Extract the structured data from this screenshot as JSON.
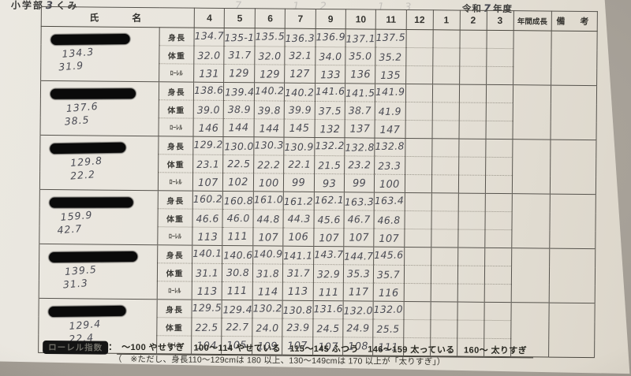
{
  "header": {
    "school_label": "小学部",
    "class_number": "3",
    "class_suffix": "くみ",
    "era_label": "令和",
    "year_number": "7",
    "year_suffix": "年度",
    "faint_marks": "7　12　13"
  },
  "table": {
    "name_header": "氏　　名",
    "annual_growth_header": "年間成長",
    "remarks_header": "備　考",
    "months": [
      "4",
      "5",
      "6",
      "7",
      "9",
      "10",
      "11",
      "12",
      "1",
      "2",
      "3"
    ],
    "row_labels": {
      "height": "身長",
      "weight": "体重",
      "rohrer": "ﾛｰﾚﾙ"
    },
    "students": [
      {
        "prev_height": "134.3",
        "prev_weight": "31.9",
        "height": [
          "134.7",
          "135-1",
          "135.5",
          "136.3",
          "136.9",
          "137.1",
          "137.5"
        ],
        "weight": [
          "32.0",
          "31.7",
          "32.0",
          "32.1",
          "34.0",
          "35.0",
          "35.2"
        ],
        "rohrer": [
          "131",
          "129",
          "129",
          "127",
          "133",
          "136",
          "135"
        ]
      },
      {
        "prev_height": "137.6",
        "prev_weight": "38.5",
        "height": [
          "138.6",
          "139.4",
          "140.2",
          "140.2",
          "141.6",
          "141.5",
          "141.9"
        ],
        "weight": [
          "39.0",
          "38.9",
          "39.8",
          "39.9",
          "37.5",
          "38.7",
          "41.9"
        ],
        "rohrer": [
          "146",
          "144",
          "144",
          "145",
          "132",
          "137",
          "147"
        ]
      },
      {
        "prev_height": "129.8",
        "prev_weight": "22.2",
        "height": [
          "129.2",
          "130.0",
          "130.3",
          "130.9",
          "132.2",
          "132.8",
          "132.8"
        ],
        "weight": [
          "23.1",
          "22.5",
          "22.2",
          "22.1",
          "21.5",
          "23.2",
          "23.3"
        ],
        "rohrer": [
          "107",
          "102",
          "100",
          "99",
          "93",
          "99",
          "100"
        ]
      },
      {
        "prev_height": "159.9",
        "prev_weight": "42.7",
        "height": [
          "160.2",
          "160.8",
          "161.0",
          "161.2",
          "162.1",
          "163.3",
          "163.4"
        ],
        "weight": [
          "46.6",
          "46.0",
          "44.8",
          "44.3",
          "45.6",
          "46.7",
          "46.8"
        ],
        "rohrer": [
          "113",
          "111",
          "107",
          "106",
          "107",
          "107",
          "107"
        ]
      },
      {
        "prev_height": "139.5",
        "prev_weight": "31.3",
        "height": [
          "140.1",
          "140.6",
          "140.9",
          "141.1",
          "143.7",
          "144.7",
          "145.6"
        ],
        "weight": [
          "31.1",
          "30.8",
          "31.8",
          "31.7",
          "32.9",
          "35.3",
          "35.7"
        ],
        "rohrer": [
          "113",
          "111",
          "114",
          "113",
          "111",
          "117",
          "116"
        ]
      },
      {
        "prev_height": "129.4",
        "prev_weight": "22.4",
        "height": [
          "129.5",
          "129.4",
          "130.2",
          "130.8",
          "131.6",
          "132.0",
          "132.0"
        ],
        "weight": [
          "22.5",
          "22.7",
          "24.0",
          "23.9",
          "24.5",
          "24.9",
          "25.5"
        ],
        "rohrer": [
          "104",
          "105",
          "109",
          "107",
          "107",
          "108",
          "111"
        ]
      }
    ]
  },
  "legend": {
    "label": "ローレル指数",
    "colon": "：",
    "scale": "～100 やせすぎ　100～114 やせている　115～145 ふつう　146～159 太っている　160～ 太りすぎ",
    "note": "（　※ただし、身長110～129cmは 180 以上、130～149cmは 170 以上が「太りすぎ」）"
  },
  "colors": {
    "paper": "#e8e4db",
    "background": "#a39d94",
    "grid_line": "#56534d",
    "handwriting": "#4a4b54",
    "redaction": "#0a0a0a"
  }
}
